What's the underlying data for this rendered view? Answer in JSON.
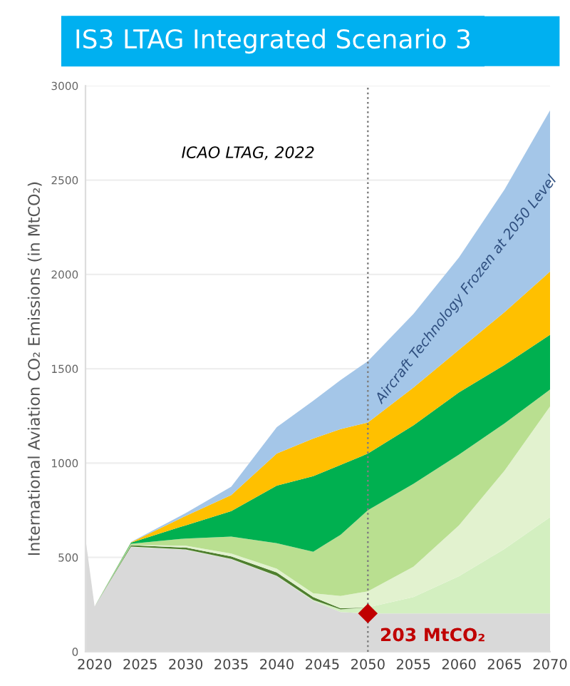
{
  "chart_data": {
    "type": "area",
    "stacked": true,
    "title": "IS3 LTAG Integrated Scenario 3",
    "ylabel": "International Aviation CO₂ Emissions (in MtCO₂)",
    "x": [
      2019,
      2020,
      2024,
      2030,
      2035,
      2040,
      2044,
      2047,
      2050,
      2055,
      2060,
      2065,
      2070
    ],
    "series": [
      {
        "color": "#d9d9d9",
        "values": [
          600,
          240,
          555,
          540,
          490,
          400,
          270,
          210,
          203,
          203,
          203,
          203,
          203
        ]
      },
      {
        "color": "#d3efc0",
        "values": [
          0,
          0,
          2,
          2,
          2,
          2,
          5,
          15,
          32,
          87,
          197,
          342,
          510
        ]
      },
      {
        "color": "#4f7f2f",
        "values": [
          0,
          0,
          8,
          10,
          13,
          18,
          15,
          5,
          0,
          0,
          0,
          0,
          0
        ]
      },
      {
        "color": "#e2f2cf",
        "values": [
          0,
          0,
          2,
          10,
          15,
          20,
          20,
          65,
          85,
          160,
          270,
          415,
          587
        ]
      },
      {
        "color": "#b9df90",
        "values": [
          0,
          0,
          5,
          38,
          90,
          135,
          220,
          325,
          430,
          440,
          375,
          250,
          90
        ]
      },
      {
        "color": "#00b050",
        "values": [
          0,
          0,
          6,
          70,
          135,
          305,
          400,
          370,
          300,
          310,
          330,
          310,
          290
        ]
      },
      {
        "color": "#ffc000",
        "values": [
          0,
          0,
          2,
          50,
          85,
          170,
          200,
          190,
          165,
          200,
          225,
          280,
          335
        ]
      },
      {
        "color": "#a4c6e8",
        "values": [
          0,
          0,
          2,
          15,
          45,
          140,
          200,
          260,
          325,
          390,
          490,
          650,
          855
        ]
      }
    ],
    "xlim": [
      2019,
      2070
    ],
    "xticks": [
      2020,
      2025,
      2030,
      2035,
      2040,
      2045,
      2050,
      2055,
      2060,
      2065,
      2070
    ],
    "ylim": [
      0,
      3000
    ],
    "yticks": [
      0,
      500,
      1000,
      1500,
      2000,
      2500,
      3000
    ],
    "grid": "y",
    "ref_lines": [
      {
        "axis": "x",
        "value": 2050,
        "color": "#808080",
        "line_style": "dotted"
      }
    ],
    "annotations": [
      "ICAO LTAG, 2022",
      "Aircraft Technology Frozen at 2050 Level",
      {
        "text": "203 MtCO₂",
        "x": 2050,
        "y": 203
      }
    ]
  }
}
